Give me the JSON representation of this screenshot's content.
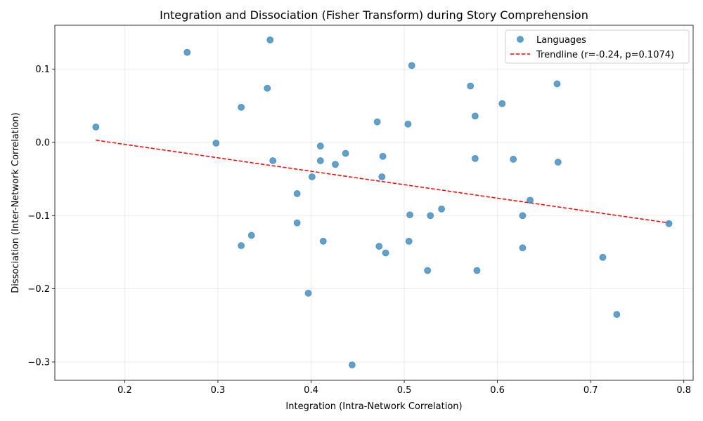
{
  "chart_data": {
    "type": "scatter",
    "title": "Integration and Dissociation (Fisher Transform) during Story Comprehension",
    "xlabel": "Integration (Intra-Network Correlation)",
    "ylabel": "Dissociation (Inter-Network Correlation)",
    "xlim": [
      0.125,
      0.81
    ],
    "ylim": [
      -0.325,
      0.16
    ],
    "xticks": [
      0.2,
      0.3,
      0.4,
      0.5,
      0.6,
      0.7,
      0.8
    ],
    "xtick_labels": [
      "0.2",
      "0.3",
      "0.4",
      "0.5",
      "0.6",
      "0.7",
      "0.8"
    ],
    "yticks": [
      -0.3,
      -0.2,
      -0.1,
      0.0,
      0.1
    ],
    "ytick_labels": [
      "−0.3",
      "−0.2",
      "−0.1",
      "0.0",
      "0.1"
    ],
    "grid": true,
    "legend_position": "top-right",
    "series": [
      {
        "name": "Languages",
        "color": "#1f77b4",
        "points": [
          [
            0.169,
            0.021
          ],
          [
            0.267,
            0.123
          ],
          [
            0.298,
            -0.001
          ],
          [
            0.325,
            0.048
          ],
          [
            0.325,
            -0.141
          ],
          [
            0.336,
            -0.127
          ],
          [
            0.353,
            0.074
          ],
          [
            0.356,
            0.14
          ],
          [
            0.359,
            -0.025
          ],
          [
            0.385,
            -0.07
          ],
          [
            0.385,
            -0.11
          ],
          [
            0.397,
            -0.206
          ],
          [
            0.401,
            -0.047
          ],
          [
            0.41,
            -0.005
          ],
          [
            0.41,
            -0.025
          ],
          [
            0.413,
            -0.135
          ],
          [
            0.426,
            -0.03
          ],
          [
            0.437,
            -0.015
          ],
          [
            0.444,
            -0.304
          ],
          [
            0.471,
            0.028
          ],
          [
            0.473,
            -0.142
          ],
          [
            0.476,
            -0.047
          ],
          [
            0.477,
            -0.019
          ],
          [
            0.48,
            -0.151
          ],
          [
            0.504,
            0.025
          ],
          [
            0.505,
            -0.135
          ],
          [
            0.506,
            -0.099
          ],
          [
            0.508,
            0.105
          ],
          [
            0.525,
            -0.175
          ],
          [
            0.528,
            -0.1
          ],
          [
            0.54,
            -0.091
          ],
          [
            0.571,
            0.077
          ],
          [
            0.576,
            0.036
          ],
          [
            0.576,
            -0.022
          ],
          [
            0.578,
            -0.175
          ],
          [
            0.605,
            0.053
          ],
          [
            0.617,
            -0.023
          ],
          [
            0.627,
            -0.1
          ],
          [
            0.627,
            -0.144
          ],
          [
            0.635,
            -0.079
          ],
          [
            0.664,
            0.08
          ],
          [
            0.665,
            -0.027
          ],
          [
            0.713,
            -0.157
          ],
          [
            0.728,
            -0.235
          ],
          [
            0.784,
            -0.111
          ]
        ]
      }
    ],
    "trendline": {
      "name": "Trendline (r=-0.24, p=0.1074)",
      "color": "#ff0000",
      "style": "dashed",
      "points": [
        [
          0.169,
          0.003
        ],
        [
          0.784,
          -0.11
        ]
      ]
    }
  }
}
